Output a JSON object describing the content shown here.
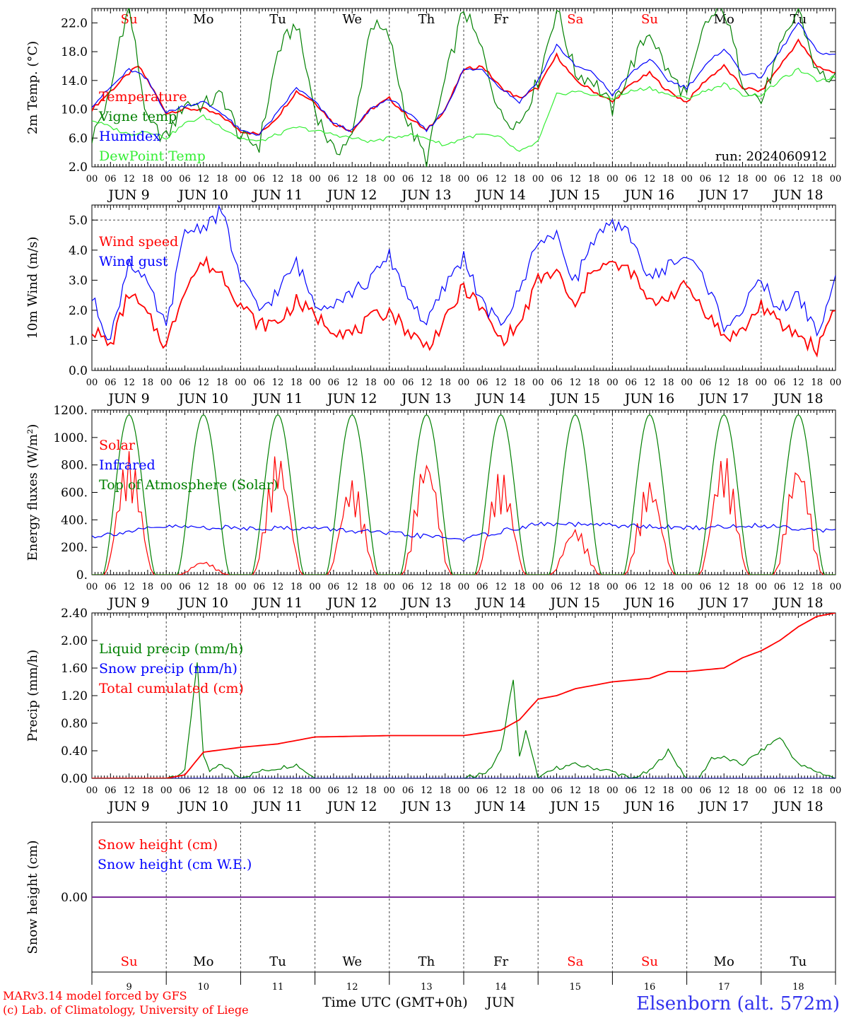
{
  "colors": {
    "red": "#ff0000",
    "green": "#008000",
    "lightgreen": "#33ee33",
    "blue": "#0000ff",
    "purple": "#7b2a9a",
    "axis": "#000000",
    "grid": "#444444"
  },
  "days": {
    "weekday_labels": [
      "Su",
      "Mo",
      "Tu",
      "We",
      "Th",
      "Fr",
      "Sa",
      "Su",
      "Mo",
      "Tu"
    ],
    "weekend_flags": [
      true,
      false,
      false,
      false,
      false,
      false,
      true,
      true,
      false,
      false
    ],
    "date_labels": [
      "JUN  9",
      "JUN 10",
      "JUN 11",
      "JUN 12",
      "JUN 13",
      "JUN 14",
      "JUN 15",
      "JUN 16",
      "JUN 17",
      "JUN 18"
    ],
    "day_numbers": [
      "9",
      "10",
      "11",
      "12",
      "13",
      "14",
      "15",
      "16",
      "17",
      "18"
    ],
    "hour_labels": [
      "00",
      "06",
      "12",
      "18"
    ],
    "final_hour_label": "00"
  },
  "footer": {
    "model": "MARv3.14 model forced by GFS",
    "credit": "(c) Lab. of Climatology, University of Liege",
    "xlabel": "Time UTC (GMT+0h)",
    "month": "JUN",
    "station": "Elsenborn (alt. 572m)"
  },
  "chart_data": [
    {
      "type": "line",
      "ylabel": "2m Temp. (°C)",
      "ylim": [
        2,
        24
      ],
      "yticks": [
        "2.0",
        "6.0",
        "10.0",
        "14.0",
        "18.0",
        "22.0"
      ],
      "annotation": "run: 2024060912",
      "x_unit": "hours since 2024-06-09 00 UTC",
      "series": [
        {
          "name": "Temperature",
          "color": "red",
          "x": [
            0,
            6,
            12,
            15,
            18,
            24,
            30,
            36,
            42,
            48,
            54,
            60,
            66,
            72,
            78,
            84,
            90,
            96,
            102,
            108,
            114,
            120,
            126,
            132,
            138,
            144,
            150,
            156,
            162,
            168,
            174,
            180,
            186,
            192,
            198,
            204,
            210,
            216,
            222,
            228,
            234,
            240
          ],
          "values": [
            10.0,
            12.5,
            15.0,
            16.0,
            14.0,
            9.5,
            10.0,
            10.0,
            9.0,
            7.0,
            6.5,
            9.0,
            12.5,
            11.0,
            8.0,
            7.0,
            10.0,
            11.5,
            9.0,
            7.0,
            10.0,
            15.5,
            16.0,
            13.0,
            11.5,
            13.0,
            17.5,
            14.0,
            12.5,
            11.0,
            13.5,
            15.0,
            12.5,
            11.0,
            14.0,
            16.0,
            13.0,
            12.5,
            16.0,
            19.5,
            16.0,
            15.0
          ]
        },
        {
          "name": "Vigne temp",
          "color": "green",
          "x": [
            0,
            6,
            9,
            12,
            18,
            24,
            30,
            36,
            42,
            48,
            54,
            60,
            66,
            72,
            78,
            84,
            90,
            96,
            102,
            108,
            114,
            120,
            126,
            132,
            138,
            144,
            150,
            156,
            162,
            168,
            174,
            180,
            186,
            192,
            198,
            204,
            210,
            216,
            222,
            228,
            234,
            240
          ],
          "values": [
            6.0,
            12.0,
            20.0,
            24.0,
            8.0,
            6.0,
            11.0,
            10.5,
            12.0,
            6.0,
            5.0,
            18.0,
            22.0,
            10.0,
            4.0,
            6.0,
            22.0,
            20.0,
            8.0,
            3.0,
            14.0,
            24.0,
            18.0,
            9.0,
            8.0,
            14.0,
            24.0,
            15.0,
            14.0,
            10.0,
            16.0,
            21.0,
            15.0,
            12.0,
            22.0,
            24.0,
            14.0,
            11.0,
            18.0,
            24.0,
            15.0,
            14.0
          ]
        },
        {
          "name": "Humidex",
          "color": "blue",
          "x": [
            0,
            6,
            12,
            15,
            18,
            24,
            30,
            36,
            42,
            48,
            54,
            60,
            66,
            72,
            78,
            84,
            90,
            96,
            102,
            108,
            114,
            120,
            126,
            132,
            138,
            144,
            150,
            156,
            162,
            168,
            174,
            180,
            186,
            192,
            198,
            204,
            210,
            216,
            222,
            228,
            234,
            240
          ],
          "values": [
            10.5,
            13.0,
            15.5,
            15.0,
            14.0,
            9.5,
            10.5,
            11.0,
            9.5,
            7.0,
            6.5,
            9.5,
            13.0,
            11.0,
            8.0,
            7.0,
            10.0,
            11.5,
            9.5,
            7.0,
            10.0,
            15.5,
            15.5,
            13.0,
            11.0,
            14.0,
            19.0,
            16.0,
            15.0,
            12.0,
            15.0,
            17.0,
            14.0,
            13.0,
            16.0,
            18.5,
            15.0,
            14.5,
            18.0,
            22.0,
            18.0,
            17.5
          ]
        },
        {
          "name": "DewPoint Temp",
          "color": "lightgreen",
          "x": [
            0,
            6,
            12,
            18,
            24,
            30,
            36,
            42,
            48,
            54,
            60,
            66,
            72,
            78,
            84,
            90,
            96,
            102,
            108,
            114,
            120,
            126,
            132,
            138,
            144,
            150,
            156,
            162,
            168,
            174,
            180,
            186,
            192,
            198,
            204,
            210,
            216,
            222,
            228,
            234,
            240
          ],
          "values": [
            8.5,
            7.5,
            6.5,
            7.0,
            6.0,
            8.0,
            9.0,
            7.5,
            6.0,
            5.5,
            6.5,
            7.5,
            7.0,
            6.5,
            6.0,
            5.5,
            6.0,
            6.5,
            6.0,
            5.0,
            6.0,
            6.5,
            6.0,
            4.0,
            5.5,
            12.0,
            12.5,
            12.0,
            11.5,
            12.5,
            13.0,
            12.0,
            11.5,
            12.5,
            13.5,
            12.0,
            12.0,
            14.0,
            15.5,
            14.0,
            14.5
          ]
        }
      ]
    },
    {
      "type": "line",
      "ylabel": "10m Wind (m/s)",
      "ylim": [
        0,
        5.5
      ],
      "yticks": [
        "0.0",
        "1.0",
        "2.0",
        "3.0",
        "4.0",
        "5.0"
      ],
      "x_unit": "hours since 2024-06-09 00 UTC",
      "series": [
        {
          "name": "Wind speed",
          "color": "red",
          "x": [
            0,
            6,
            12,
            18,
            24,
            30,
            36,
            42,
            48,
            54,
            60,
            66,
            72,
            78,
            84,
            90,
            96,
            102,
            108,
            114,
            120,
            126,
            132,
            138,
            144,
            150,
            156,
            162,
            168,
            174,
            180,
            186,
            192,
            198,
            204,
            210,
            216,
            222,
            228,
            234,
            240
          ],
          "values": [
            1.4,
            0.8,
            2.6,
            1.8,
            0.8,
            2.8,
            3.6,
            3.2,
            2.2,
            1.5,
            1.6,
            2.3,
            1.8,
            1.4,
            1.2,
            1.7,
            2.0,
            1.3,
            0.8,
            1.6,
            2.8,
            2.0,
            1.0,
            1.5,
            3.0,
            3.3,
            2.0,
            3.5,
            3.5,
            3.3,
            2.2,
            2.5,
            2.8,
            2.0,
            1.1,
            1.3,
            2.2,
            1.5,
            1.2,
            0.7,
            2.2
          ]
        },
        {
          "name": "Wind gust",
          "color": "blue",
          "x": [
            0,
            6,
            12,
            18,
            24,
            30,
            36,
            42,
            48,
            54,
            60,
            66,
            72,
            78,
            84,
            90,
            96,
            102,
            108,
            114,
            120,
            126,
            132,
            138,
            144,
            150,
            156,
            162,
            168,
            174,
            180,
            186,
            192,
            198,
            204,
            210,
            216,
            222,
            228,
            234,
            240
          ],
          "values": [
            2.4,
            1.0,
            3.7,
            2.8,
            1.4,
            4.6,
            4.8,
            5.3,
            3.0,
            2.0,
            2.6,
            3.6,
            2.2,
            2.3,
            2.6,
            3.0,
            3.8,
            2.5,
            1.5,
            2.8,
            3.8,
            2.2,
            1.5,
            2.6,
            4.4,
            4.4,
            3.0,
            4.4,
            4.8,
            4.5,
            3.0,
            3.5,
            3.8,
            3.0,
            1.5,
            2.0,
            3.0,
            2.0,
            2.5,
            1.2,
            3.0
          ]
        }
      ]
    },
    {
      "type": "line",
      "ylabel": "Energy fluxes (W/m²)",
      "ylim": [
        0,
        1200
      ],
      "yticks": [
        "0.",
        "200.",
        "400.",
        "600.",
        "800.",
        "1000.",
        "1200."
      ],
      "x_unit": "hours since 2024-06-09 00 UTC",
      "series": [
        {
          "name": "Solar",
          "color": "red",
          "day_peaks": [
            900,
            100,
            900,
            700,
            880,
            760,
            350,
            700,
            880,
            840
          ]
        },
        {
          "name": "Infrared",
          "color": "blue",
          "x": [
            0,
            24,
            48,
            72,
            96,
            120,
            144,
            168,
            192,
            216,
            240
          ],
          "values": [
            280,
            350,
            340,
            340,
            300,
            260,
            370,
            360,
            340,
            360,
            320
          ]
        },
        {
          "name": "Top of Atmosphere (Solar)",
          "color": "green",
          "day_peak": 1165
        }
      ]
    },
    {
      "type": "line",
      "ylabel": "Precip (mm/h)",
      "ylim": [
        0,
        2.4
      ],
      "yticks": [
        "0.00",
        "0.40",
        "0.80",
        "1.20",
        "1.60",
        "2.00",
        "2.40"
      ],
      "x_unit": "hours since 2024-06-09 00 UTC",
      "series": [
        {
          "name": "Liquid precip (mm/h)",
          "color": "green",
          "x": [
            0,
            24,
            30,
            34,
            36,
            38,
            42,
            48,
            54,
            60,
            66,
            72,
            84,
            120,
            128,
            132,
            136,
            138,
            140,
            144,
            150,
            156,
            168,
            174,
            180,
            186,
            192,
            196,
            200,
            204,
            210,
            216,
            222,
            228,
            234,
            240
          ],
          "values": [
            0,
            0,
            0.1,
            1.7,
            0.3,
            0.1,
            0.2,
            0,
            0.1,
            0.15,
            0.2,
            0,
            0,
            0,
            0.1,
            0.4,
            1.45,
            0.3,
            0.7,
            0,
            0.15,
            0.2,
            0.1,
            0,
            0.1,
            0.4,
            0,
            0,
            0.3,
            0.3,
            0.2,
            0.4,
            0.6,
            0.2,
            0.1,
            0
          ]
        },
        {
          "name": "Snow precip (mm/h)",
          "color": "blue",
          "x": [
            0,
            240
          ],
          "values": [
            0,
            0
          ]
        },
        {
          "name": "Total cumulated (cm)",
          "color": "red",
          "x": [
            0,
            24,
            30,
            36,
            48,
            60,
            72,
            84,
            96,
            108,
            120,
            132,
            138,
            144,
            150,
            156,
            168,
            180,
            186,
            192,
            204,
            210,
            216,
            222,
            228,
            234,
            240
          ],
          "values": [
            0,
            0,
            0.05,
            0.38,
            0.45,
            0.5,
            0.6,
            0.61,
            0.62,
            0.62,
            0.62,
            0.7,
            0.85,
            1.15,
            1.2,
            1.3,
            1.4,
            1.45,
            1.55,
            1.55,
            1.6,
            1.75,
            1.85,
            2.0,
            2.2,
            2.35,
            2.4
          ]
        }
      ]
    },
    {
      "type": "line",
      "ylabel": "Snow height (cm)",
      "yticks": [
        "0.00"
      ],
      "series": [
        {
          "name": "Snow height (cm)",
          "color": "red",
          "values": [
            0,
            0
          ]
        },
        {
          "name": "Snow height (cm W.E.)",
          "color": "blue",
          "values": [
            0,
            0
          ]
        }
      ]
    }
  ]
}
